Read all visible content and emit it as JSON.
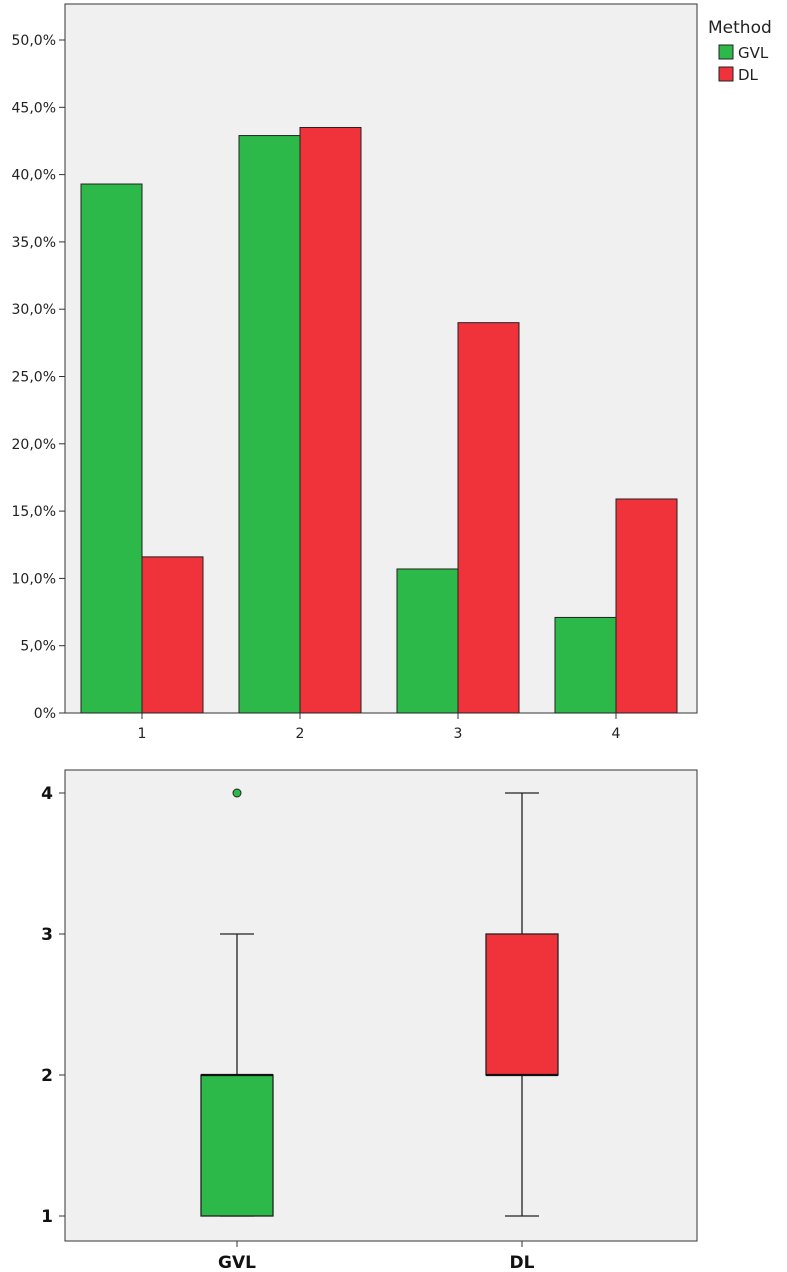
{
  "chart_data": [
    {
      "type": "bar",
      "title": "",
      "xlabel": "",
      "ylabel": "",
      "categories": [
        "1",
        "2",
        "3",
        "4"
      ],
      "ylim": [
        0,
        50
      ],
      "y_tick_labels": [
        "0%",
        "5,0%",
        "10,0%",
        "15,0%",
        "20,0%",
        "25,0%",
        "30,0%",
        "35,0%",
        "40,0%",
        "45,0%",
        "50,0%"
      ],
      "legend": {
        "title": "Method",
        "position": "top-right, outside plot"
      },
      "grid": false,
      "series": [
        {
          "name": "GVL",
          "color": "#2db84a",
          "values": [
            39.3,
            42.9,
            10.7,
            7.1
          ]
        },
        {
          "name": "DL",
          "color": "#f0323a",
          "values": [
            11.6,
            43.5,
            29.0,
            15.9
          ]
        }
      ]
    },
    {
      "type": "box",
      "title": "",
      "xlabel": "",
      "ylabel": "",
      "categories": [
        "GVL",
        "DL"
      ],
      "ylim": [
        1,
        4
      ],
      "y_tick_labels": [
        "1",
        "2",
        "3",
        "4"
      ],
      "grid": false,
      "boxes": [
        {
          "name": "GVL",
          "color": "#2db84a",
          "whisker_low": 1,
          "q1": 1,
          "median": 2,
          "q3": 2,
          "whisker_high": 3,
          "outliers": [
            4
          ]
        },
        {
          "name": "DL",
          "color": "#f0323a",
          "whisker_low": 1,
          "q1": 2,
          "median": 2,
          "q3": 3,
          "whisker_high": 4,
          "outliers": []
        }
      ]
    }
  ]
}
